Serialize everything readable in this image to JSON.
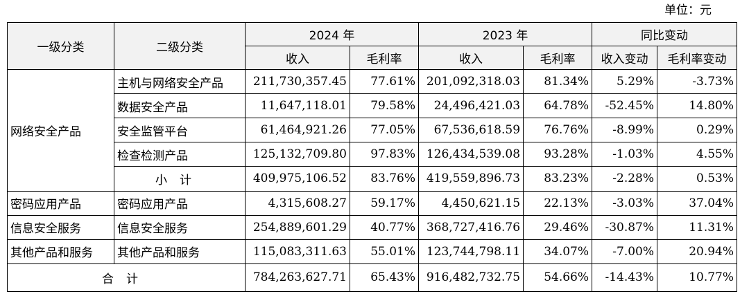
{
  "unit_label": "单位：元",
  "header": {
    "level1": "一级分类",
    "level2": "二级分类",
    "year_2024": "2024 年",
    "year_2023": "2023 年",
    "yoy": "同比变动",
    "revenue_2024": "收入",
    "margin_2024": "毛利率",
    "revenue_2023": "收入",
    "margin_2023": "毛利率",
    "revenue_change": "收入变动",
    "margin_change": "毛利率变动"
  },
  "network": {
    "category": "网络安全产品",
    "rows": [
      {
        "name": "主机与网络安全产品",
        "rev2024": "211,730,357.45",
        "gm2024": "77.61%",
        "rev2023": "201,092,318.03",
        "gm2023": "81.34%",
        "rev_chg": "5.29%",
        "gm_chg": "-3.73%"
      },
      {
        "name": "数据安全产品",
        "rev2024": "11,647,118.01",
        "gm2024": "79.58%",
        "rev2023": "24,496,421.03",
        "gm2023": "64.78%",
        "rev_chg": "-52.45%",
        "gm_chg": "14.80%"
      },
      {
        "name": "安全监管平台",
        "rev2024": "61,464,921.26",
        "gm2024": "77.05%",
        "rev2023": "67,536,618.59",
        "gm2023": "76.76%",
        "rev_chg": "-8.99%",
        "gm_chg": "0.29%"
      },
      {
        "name": "检查检测产品",
        "rev2024": "125,132,709.80",
        "gm2024": "97.83%",
        "rev2023": "126,434,539.08",
        "gm2023": "93.28%",
        "rev_chg": "-1.03%",
        "gm_chg": "4.55%"
      }
    ],
    "subtotal": {
      "name": "小计",
      "rev2024": "409,975,106.52",
      "gm2024": "83.76%",
      "rev2023": "419,559,896.73",
      "gm2023": "83.23%",
      "rev_chg": "-2.28%",
      "gm_chg": "0.53%"
    }
  },
  "other_rows": [
    {
      "category": "密码应用产品",
      "name": "密码应用产品",
      "rev2024": "4,315,608.27",
      "gm2024": "59.17%",
      "rev2023": "4,450,621.15",
      "gm2023": "22.13%",
      "rev_chg": "-3.03%",
      "gm_chg": "37.04%"
    },
    {
      "category": "信息安全服务",
      "name": "信息安全服务",
      "rev2024": "254,889,601.29",
      "gm2024": "40.77%",
      "rev2023": "368,727,416.76",
      "gm2023": "29.46%",
      "rev_chg": "-30.87%",
      "gm_chg": "11.31%"
    },
    {
      "category": "其他产品和服务",
      "name": "其他产品和服务",
      "rev2024": "115,083,311.63",
      "gm2024": "55.01%",
      "rev2023": "123,744,798.11",
      "gm2023": "34.07%",
      "rev_chg": "-7.00%",
      "gm_chg": "20.94%"
    }
  ],
  "total": {
    "name": "合计",
    "rev2024": "784,263,627.71",
    "gm2024": "65.43%",
    "rev2023": "916,482,732.75",
    "gm2023": "54.66%",
    "rev_chg": "-14.43%",
    "gm_chg": "10.77%"
  }
}
